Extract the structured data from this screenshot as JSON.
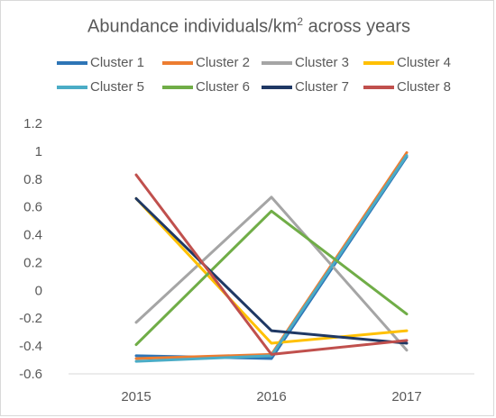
{
  "chart_data": {
    "type": "line",
    "title_main": "Abundance individuals/km",
    "title_sup": "2",
    "title_rest": " across years",
    "categories": [
      "2015",
      "2016",
      "2017"
    ],
    "ylim": [
      -0.6,
      1.2
    ],
    "ytick_step": 0.2,
    "yticks": [
      "1.2",
      "1",
      "0.8",
      "0.6",
      "0.4",
      "0.2",
      "0",
      "-0.2",
      "-0.4",
      "-0.6"
    ],
    "grid": false,
    "legend_position": "top",
    "series": [
      {
        "name": "Cluster 1",
        "color": "#2E75B6",
        "values": [
          -0.47,
          -0.49,
          0.96
        ]
      },
      {
        "name": "Cluster 2",
        "color": "#ED7D31",
        "values": [
          -0.49,
          -0.46,
          0.99
        ]
      },
      {
        "name": "Cluster 3",
        "color": "#A5A5A5",
        "values": [
          -0.23,
          0.67,
          -0.43
        ]
      },
      {
        "name": "Cluster 4",
        "color": "#FFC000",
        "values": [
          0.66,
          -0.38,
          -0.29
        ]
      },
      {
        "name": "Cluster 5",
        "color": "#4BACC6",
        "values": [
          -0.51,
          -0.47,
          0.97
        ]
      },
      {
        "name": "Cluster 6",
        "color": "#70AD47",
        "values": [
          -0.39,
          0.57,
          -0.17
        ]
      },
      {
        "name": "Cluster 7",
        "color": "#1F3864",
        "values": [
          0.66,
          -0.29,
          -0.38
        ]
      },
      {
        "name": "Cluster 8",
        "color": "#C0504D",
        "values": [
          0.83,
          -0.46,
          -0.36
        ]
      }
    ]
  }
}
